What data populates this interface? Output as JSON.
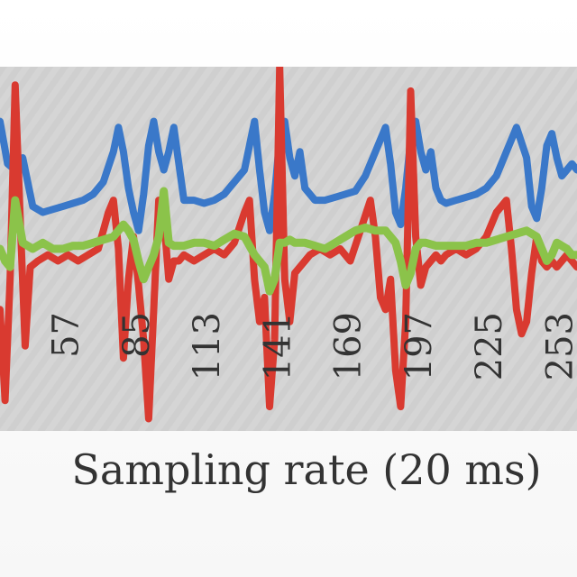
{
  "chart_data": {
    "type": "line",
    "xlabel": "Sampling rate (20 ms)",
    "x_tick_labels": [
      "57",
      "85",
      "113",
      "141",
      "169",
      "197",
      "225",
      "253"
    ],
    "xlim": [
      31,
      260
    ],
    "ylim": [
      -3,
      3
    ],
    "grid": false,
    "legend": "none",
    "series": [
      {
        "color": "#3a78c9",
        "x": [
          31,
          34,
          37,
          40,
          44,
          48,
          52,
          56,
          60,
          64,
          68,
          72,
          76,
          78,
          80,
          82,
          84,
          86,
          88,
          90,
          92,
          94,
          96,
          98,
          100,
          104,
          108,
          112,
          116,
          120,
          124,
          128,
          130,
          132,
          134,
          136,
          138,
          140,
          142,
          144,
          146,
          148,
          150,
          152,
          156,
          160,
          164,
          168,
          172,
          176,
          180,
          184,
          186,
          188,
          190,
          192,
          194,
          196,
          198,
          200,
          202,
          204,
          206,
          208,
          212,
          216,
          220,
          224,
          228,
          232,
          236,
          240,
          242,
          244,
          246,
          248,
          250,
          252,
          254,
          256,
          258,
          260
        ],
        "values": [
          2.1,
          1.4,
          1.3,
          1.5,
          0.7,
          0.6,
          0.65,
          0.7,
          0.75,
          0.8,
          0.9,
          1.1,
          1.6,
          2.0,
          1.6,
          1.0,
          0.6,
          0.3,
          0.9,
          1.7,
          2.1,
          1.6,
          1.3,
          1.6,
          2.0,
          0.8,
          0.8,
          0.75,
          0.8,
          0.9,
          1.1,
          1.3,
          1.7,
          2.1,
          1.3,
          0.6,
          0.3,
          0.9,
          1.8,
          2.1,
          1.5,
          1.2,
          1.6,
          1.0,
          0.8,
          0.8,
          0.85,
          0.9,
          0.95,
          1.2,
          1.6,
          2.0,
          1.4,
          0.6,
          0.4,
          1.0,
          1.8,
          2.1,
          1.6,
          1.3,
          1.6,
          1.0,
          0.8,
          0.75,
          0.8,
          0.85,
          0.9,
          1.0,
          1.2,
          1.6,
          2.0,
          1.5,
          0.7,
          0.5,
          1.0,
          1.7,
          1.9,
          1.5,
          1.2,
          1.3,
          1.4,
          1.3
        ]
      },
      {
        "color": "#d93a30",
        "x": [
          31,
          33,
          35,
          37,
          39,
          41,
          43,
          46,
          50,
          54,
          58,
          62,
          66,
          70,
          74,
          76,
          78,
          80,
          82,
          84,
          86,
          88,
          90,
          92,
          94,
          96,
          98,
          100,
          102,
          104,
          108,
          112,
          116,
          120,
          124,
          128,
          130,
          132,
          134,
          136,
          138,
          140,
          142,
          144,
          146,
          148,
          150,
          152,
          154,
          158,
          162,
          166,
          170,
          174,
          178,
          180,
          182,
          184,
          186,
          188,
          190,
          192,
          194,
          196,
          198,
          200,
          202,
          204,
          206,
          208,
          212,
          216,
          220,
          224,
          228,
          232,
          234,
          236,
          238,
          240,
          242,
          244,
          246,
          248,
          250,
          252,
          254,
          256,
          258,
          260
        ],
        "values": [
          -1.0,
          -2.5,
          -0.5,
          2.7,
          0.5,
          -1.6,
          -0.3,
          -0.2,
          -0.1,
          -0.2,
          -0.1,
          -0.2,
          -0.1,
          0.0,
          0.6,
          0.8,
          0.0,
          -1.8,
          -0.5,
          0.2,
          -0.6,
          -1.5,
          -2.8,
          -1.0,
          0.8,
          0.5,
          -0.5,
          -0.2,
          -0.2,
          -0.1,
          -0.2,
          -0.1,
          0.0,
          -0.1,
          0.1,
          0.6,
          0.8,
          -0.5,
          -1.2,
          -0.8,
          -2.6,
          -1.5,
          3.0,
          -0.5,
          -1.2,
          -0.4,
          -0.3,
          -0.2,
          -0.1,
          0.0,
          -0.1,
          0.0,
          -0.2,
          0.3,
          0.8,
          0.2,
          -0.8,
          -1.0,
          -0.5,
          -2.0,
          -2.6,
          -1.2,
          2.6,
          0.2,
          -0.6,
          -0.3,
          -0.2,
          -0.1,
          -0.2,
          -0.1,
          0.0,
          -0.1,
          0.0,
          0.2,
          0.6,
          0.8,
          0.0,
          -1.0,
          -1.4,
          -1.2,
          -0.4,
          0.2,
          -0.2,
          -0.3,
          -0.2,
          -0.3,
          -0.2,
          -0.1,
          -0.2,
          -0.3
        ]
      },
      {
        "color": "#8bc34a",
        "x": [
          31,
          33,
          35,
          37,
          40,
          44,
          48,
          52,
          56,
          60,
          64,
          68,
          72,
          76,
          80,
          82,
          84,
          86,
          88,
          90,
          92,
          94,
          96,
          98,
          100,
          104,
          108,
          112,
          116,
          120,
          124,
          128,
          132,
          136,
          138,
          140,
          142,
          144,
          146,
          148,
          152,
          156,
          160,
          164,
          168,
          172,
          176,
          180,
          184,
          188,
          190,
          192,
          194,
          196,
          198,
          200,
          204,
          208,
          212,
          216,
          220,
          224,
          228,
          232,
          236,
          240,
          244,
          246,
          248,
          250,
          252,
          254,
          256,
          258,
          260
        ],
        "values": [
          0.0,
          -0.2,
          -0.3,
          0.8,
          0.1,
          0.0,
          0.1,
          0.0,
          0.0,
          0.05,
          0.05,
          0.1,
          0.15,
          0.2,
          0.4,
          0.3,
          0.15,
          -0.2,
          -0.5,
          -0.3,
          -0.1,
          0.2,
          0.95,
          0.1,
          0.05,
          0.05,
          0.1,
          0.1,
          0.05,
          0.15,
          0.25,
          0.2,
          -0.1,
          -0.3,
          -0.7,
          -0.5,
          0.1,
          0.1,
          0.15,
          0.1,
          0.1,
          0.05,
          0.0,
          0.1,
          0.2,
          0.3,
          0.35,
          0.3,
          0.3,
          0.1,
          -0.2,
          -0.6,
          -0.4,
          0.0,
          0.1,
          0.1,
          0.05,
          0.05,
          0.05,
          0.05,
          0.1,
          0.1,
          0.15,
          0.2,
          0.25,
          0.3,
          0.2,
          0.0,
          -0.2,
          -0.1,
          0.1,
          0.05,
          0.0,
          -0.1,
          -0.1
        ]
      }
    ]
  }
}
